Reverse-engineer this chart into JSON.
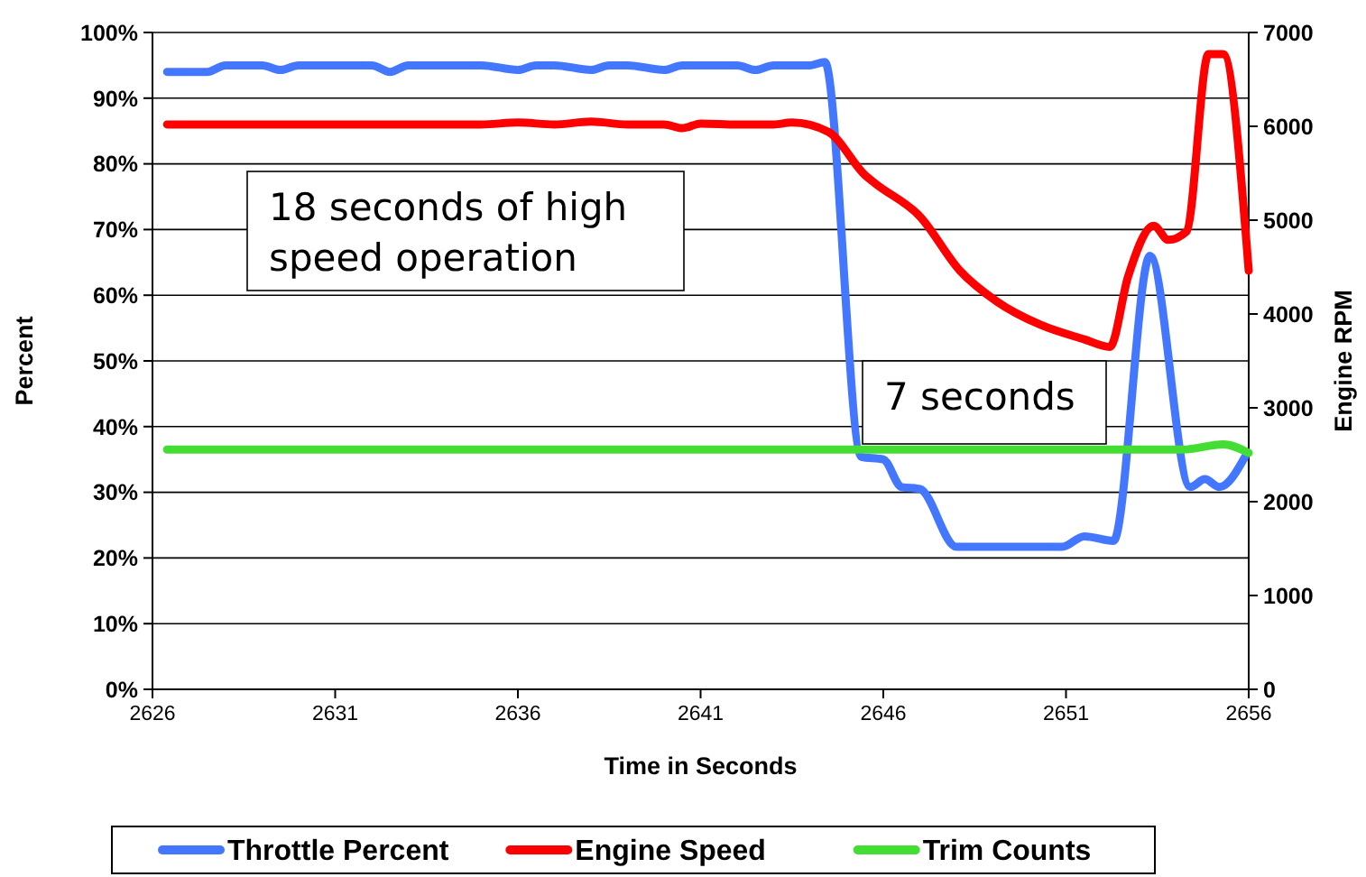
{
  "chart_data": {
    "type": "line",
    "xlabel": "Time in Seconds",
    "ylabel": "Percent",
    "y2label": "Engine RPM",
    "xlim": [
      2626,
      2656
    ],
    "xticks": [
      2626,
      2631,
      2636,
      2641,
      2646,
      2651,
      2656
    ],
    "ylim": [
      0,
      100
    ],
    "yticks": [
      {
        "value": 0,
        "label": "0%"
      },
      {
        "value": 10,
        "label": "10%"
      },
      {
        "value": 20,
        "label": "20%"
      },
      {
        "value": 30,
        "label": "30%"
      },
      {
        "value": 40,
        "label": "40%"
      },
      {
        "value": 50,
        "label": "50%"
      },
      {
        "value": 60,
        "label": "60%"
      },
      {
        "value": 70,
        "label": "70%"
      },
      {
        "value": 80,
        "label": "80%"
      },
      {
        "value": 90,
        "label": "90%"
      },
      {
        "value": 100,
        "label": "100%"
      }
    ],
    "y2lim": [
      0,
      7000
    ],
    "y2ticks": [
      0,
      1000,
      2000,
      3000,
      4000,
      5000,
      6000,
      7000
    ],
    "grid": "y",
    "legend": "bottom",
    "line_style": "solid",
    "annotations": [
      "18 seconds of high speed operation",
      "7 seconds"
    ],
    "series": [
      {
        "name": "Throttle Percent",
        "color": "#4477ff",
        "x": [
          2626.4,
          2627.5,
          2628,
          2629,
          2629.5,
          2630,
          2631,
          2632,
          2632.5,
          2633,
          2634,
          2635,
          2636,
          2636.5,
          2637,
          2638,
          2638.5,
          2639,
          2640,
          2640.5,
          2641,
          2642,
          2642.5,
          2643,
          2643.5,
          2644,
          2644.4,
          2645.4,
          2646,
          2646.5,
          2647,
          2648,
          2649,
          2650.9,
          2651.5,
          2652.3,
          2653.3,
          2654.4,
          2654.8,
          2655.2,
          2655.9
        ],
        "values": [
          94,
          94,
          95,
          95,
          94.3,
          95,
          95,
          95,
          94,
          95,
          95,
          95,
          94.3,
          95,
          95,
          94.3,
          95,
          95,
          94.3,
          95,
          95,
          95,
          94.3,
          95,
          95,
          95,
          95.5,
          35.4,
          35,
          30.8,
          30.5,
          21.7,
          21.7,
          21.7,
          23.3,
          22.6,
          66,
          30.8,
          32,
          30.8,
          35.4
        ]
      },
      {
        "name": "Engine Speed",
        "color": "#ff0000",
        "axis": "y2",
        "x": [
          2626.4,
          2630,
          2635,
          2636,
          2637,
          2638,
          2639,
          2640,
          2640.5,
          2641,
          2642,
          2643,
          2643.5,
          2644.5,
          2645.5,
          2645.8,
          2647,
          2648.1,
          2649.1,
          2650.3,
          2651.5,
          2652.2,
          2652.7,
          2653.4,
          2653.8,
          2654.3,
          2654.9,
          2655.3,
          2656
        ],
        "values": [
          6020,
          6020,
          6020,
          6040,
          6020,
          6050,
          6020,
          6020,
          5980,
          6030,
          6020,
          6020,
          6040,
          5940,
          5480,
          5385,
          5040,
          4460,
          4135,
          3885,
          3730,
          3650,
          4400,
          4940,
          4790,
          4880,
          6770,
          6770,
          4460
        ]
      },
      {
        "name": "Trim Counts",
        "color": "#44dd33",
        "x": [
          2626.4,
          2645,
          2654.2,
          2655.3,
          2656
        ],
        "values": [
          36.5,
          36.5,
          36.5,
          37.3,
          36
        ]
      }
    ]
  }
}
